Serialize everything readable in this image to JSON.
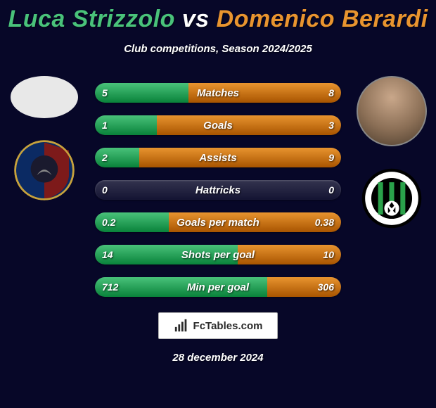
{
  "title_player1_color": "#49c27a",
  "title_vs_color": "#ffffff",
  "title_player2_color": "#e8942f",
  "player1_name": "Luca Strizzolo",
  "vs_text": "vs",
  "player2_name": "Domenico Berardi",
  "subtitle": "Club competitions, Season 2024/2025",
  "left_fill_color": "#49c27a",
  "right_fill_color": "#e8942f",
  "bar_bg": "rgba(255,255,255,0.12)",
  "stats": [
    {
      "label": "Matches",
      "left_value": "5",
      "right_value": "8",
      "left_pct": 38,
      "right_pct": 62
    },
    {
      "label": "Goals",
      "left_value": "1",
      "right_value": "3",
      "left_pct": 25,
      "right_pct": 75
    },
    {
      "label": "Assists",
      "left_value": "2",
      "right_value": "9",
      "left_pct": 18,
      "right_pct": 82
    },
    {
      "label": "Hattricks",
      "left_value": "0",
      "right_value": "0",
      "left_pct": 0,
      "right_pct": 0
    },
    {
      "label": "Goals per match",
      "left_value": "0.2",
      "right_value": "0.38",
      "left_pct": 30,
      "right_pct": 70
    },
    {
      "label": "Shots per goal",
      "left_value": "14",
      "right_value": "10",
      "left_pct": 58,
      "right_pct": 42
    },
    {
      "label": "Min per goal",
      "left_value": "712",
      "right_value": "306",
      "left_pct": 70,
      "right_pct": 30
    }
  ],
  "footer_brand": "FcTables.com",
  "footer_date": "28 december 2024",
  "club1_badge_colors": {
    "top": "#0b2a63",
    "bottom": "#7d1a1a",
    "ring": "#c7a23c",
    "inner": "#223"
  },
  "club2_badge_colors": {
    "ring_outer": "#000000",
    "ring_inner": "#ffffff",
    "stripes": "#2aa24a",
    "bg": "#000000"
  }
}
